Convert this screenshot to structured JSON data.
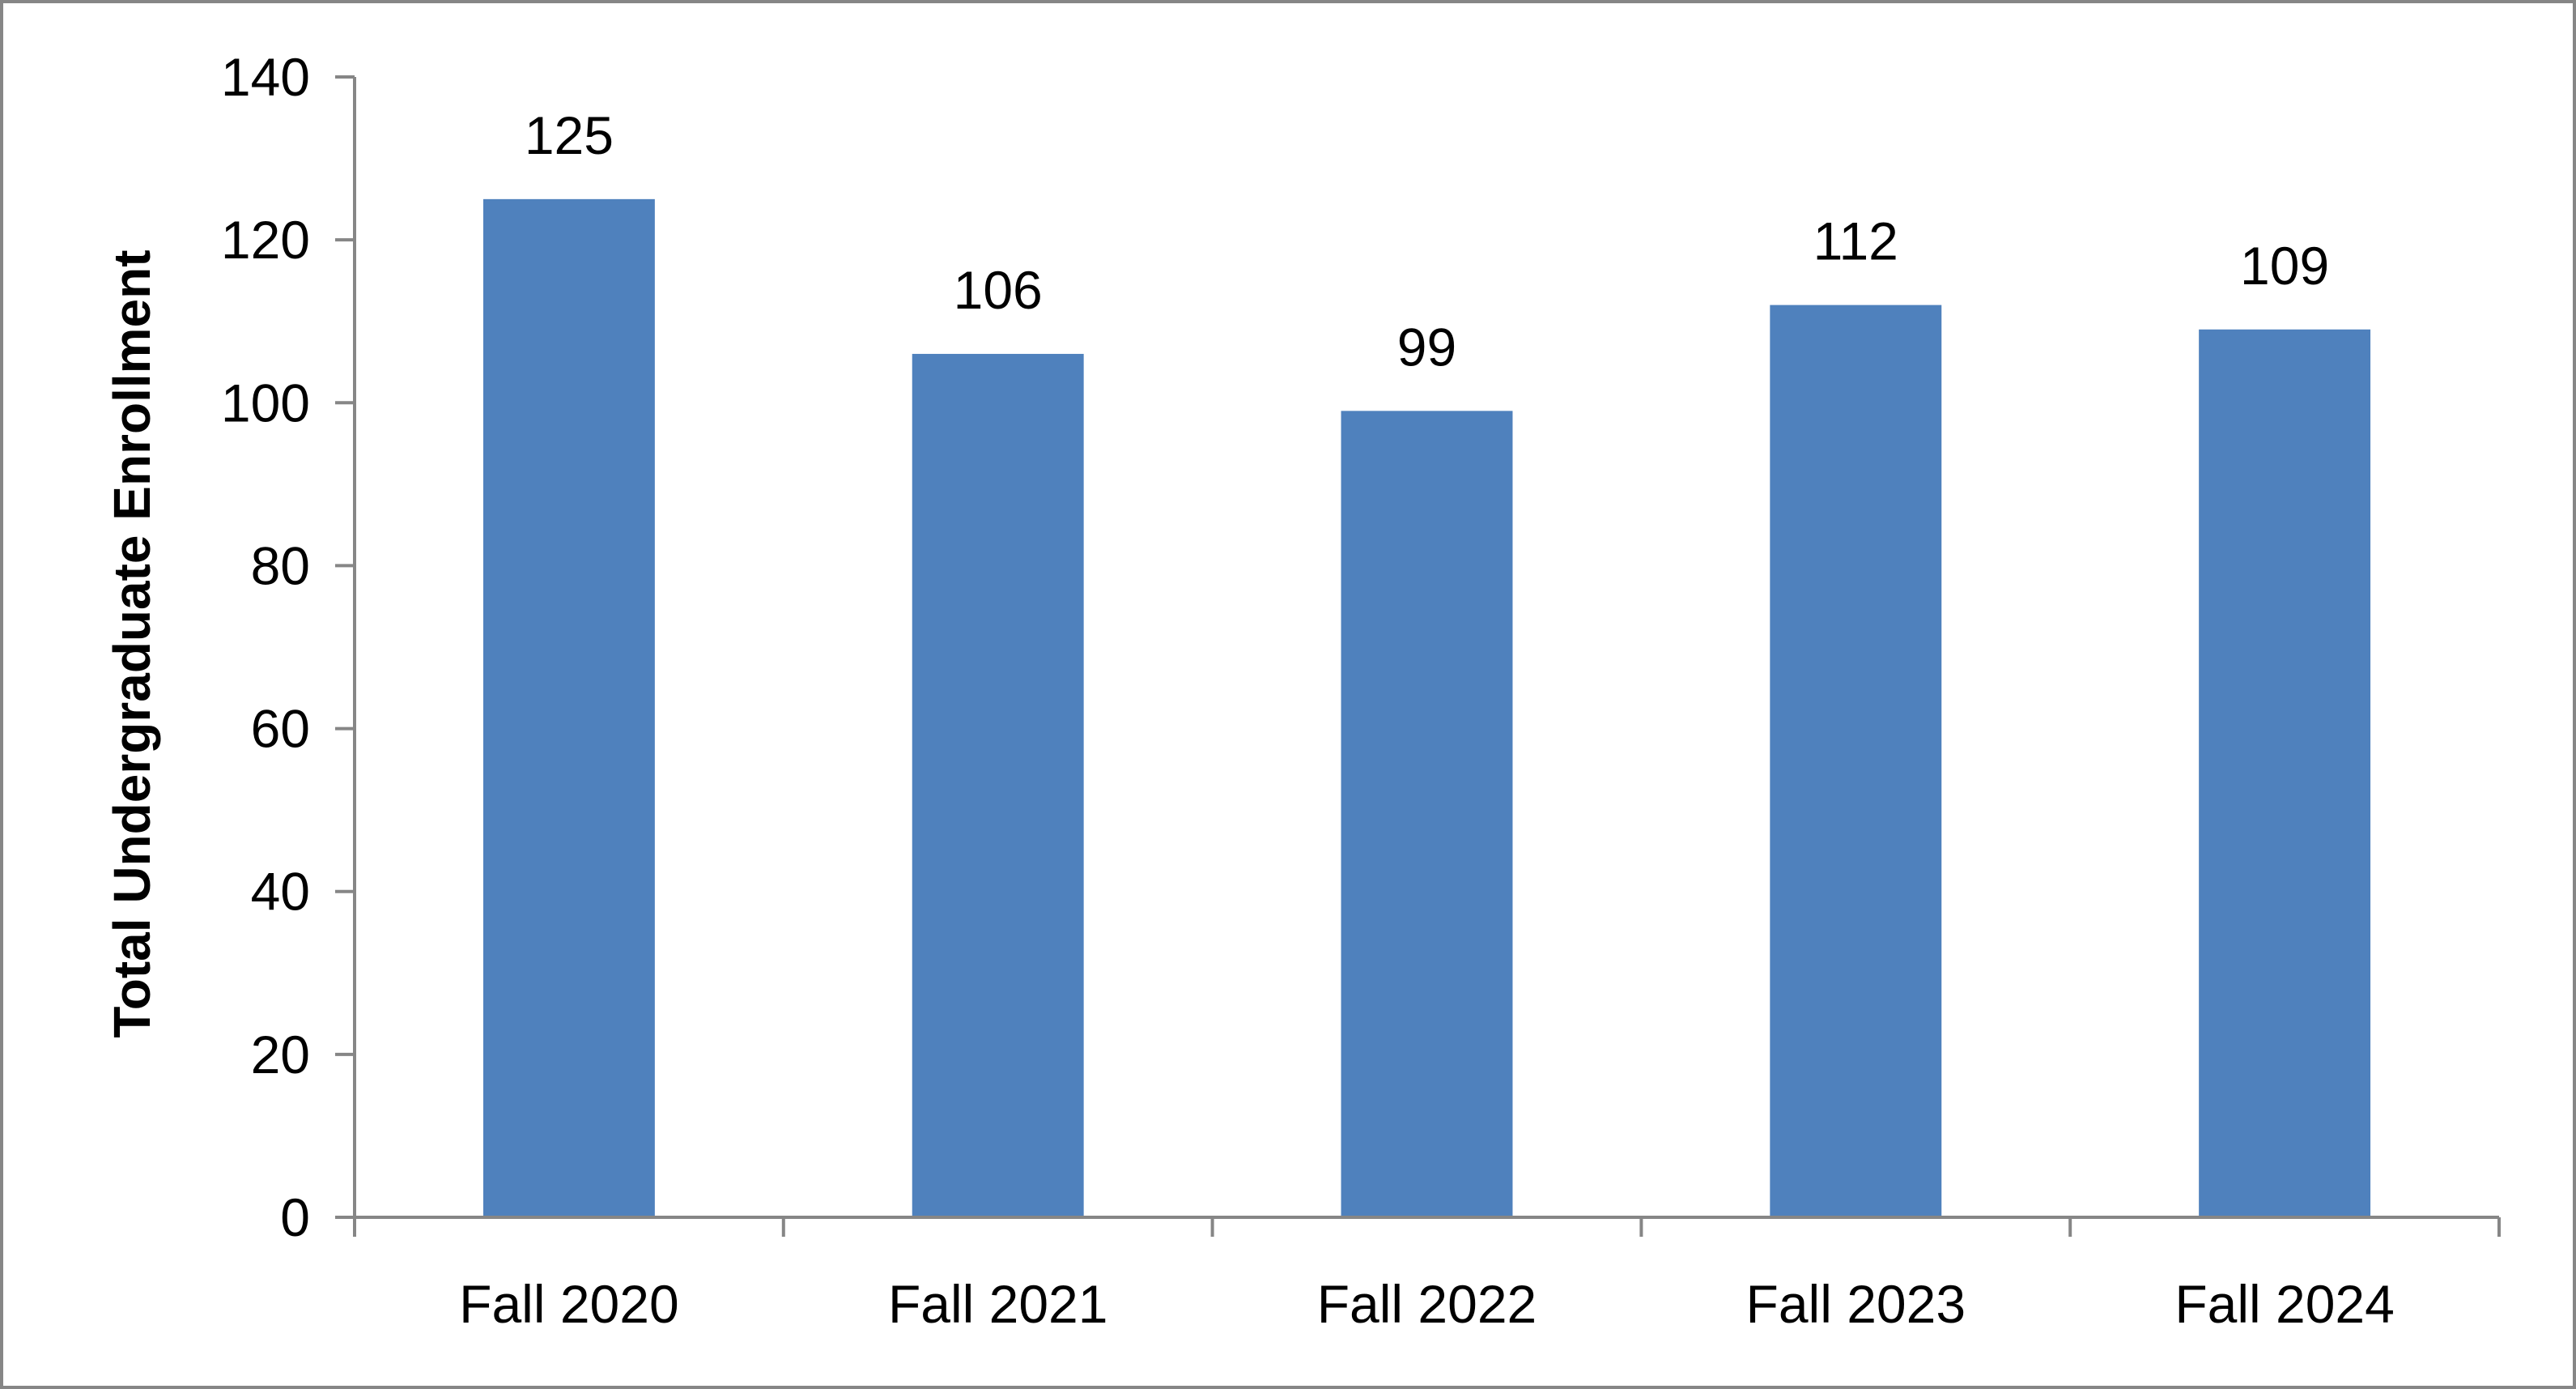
{
  "chart_data": {
    "type": "bar",
    "title": "",
    "xlabel": "",
    "ylabel": "Total Undergraduate Enrollment",
    "categories": [
      "Fall 2020",
      "Fall 2021",
      "Fall 2022",
      "Fall 2023",
      "Fall 2024"
    ],
    "values": [
      125,
      106,
      99,
      112,
      109
    ],
    "value_labels": [
      "125",
      "106",
      "99",
      "112",
      "109"
    ],
    "ylim": [
      0,
      140
    ],
    "yticks": [
      0,
      20,
      40,
      60,
      80,
      100,
      120,
      140
    ],
    "ytick_labels": [
      "0",
      "20",
      "40",
      "60",
      "80",
      "100",
      "120",
      "140"
    ],
    "grid": false,
    "legend": "none",
    "bar_color": "#4F81BD",
    "axis_color": "#868686",
    "border_color": "#868686"
  }
}
